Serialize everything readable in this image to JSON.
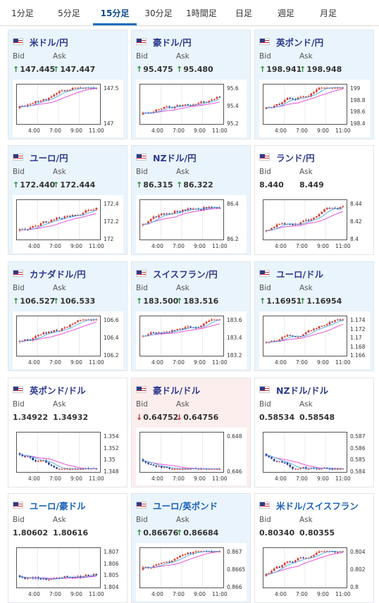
{
  "tabs": [
    {
      "label": "1分足",
      "active": false
    },
    {
      "label": "5分足",
      "active": false
    },
    {
      "label": "15分足",
      "active": true
    },
    {
      "label": "30分足",
      "active": false
    },
    {
      "label": "1時間足",
      "active": false
    },
    {
      "label": "日足",
      "active": false
    },
    {
      "label": "週足",
      "active": false
    },
    {
      "label": "月足",
      "active": false
    }
  ],
  "labels": {
    "bid": "Bid",
    "ask": "Ask"
  },
  "colors": {
    "up_candle": "#d93a2b",
    "down_candle": "#1f3a93",
    "ma_magenta": "#e23fd6",
    "ma_blue": "#3aa0e6",
    "arrow_up": "#2a8a3a",
    "arrow_down": "#c62828"
  },
  "cards": [
    {
      "name": "米ドル/円",
      "flag": "usjp",
      "bid": "147.445",
      "ask": "147.447",
      "dir": "up",
      "yticks": [
        "147.5",
        "147"
      ],
      "xticks": [
        "4:00",
        "7:00",
        "9:00",
        "11:00"
      ]
    },
    {
      "name": "豪ドル/円",
      "flag": "aujp",
      "bid": "95.475",
      "ask": "95.480",
      "dir": "up",
      "yticks": [
        "95.6",
        "95.4",
        "95.2"
      ],
      "xticks": [
        "4:00",
        "7:00",
        "9:00",
        "11:00"
      ]
    },
    {
      "name": "英ポンド/円",
      "flag": "gbjp",
      "bid": "198.941",
      "ask": "198.948",
      "dir": "up",
      "yticks": [
        "199",
        "198.8",
        "198.6",
        "198.4"
      ],
      "xticks": [
        "4:00",
        "7:00",
        "9:00",
        "11:00"
      ]
    },
    {
      "name": "ユーロ/円",
      "flag": "eujp",
      "bid": "172.440",
      "ask": "172.444",
      "dir": "up",
      "yticks": [
        "172.4",
        "172.2",
        "172"
      ],
      "xticks": [
        "4:00",
        "7:00",
        "9:00",
        "11:00"
      ]
    },
    {
      "name": "NZドル/円",
      "flag": "nzjp",
      "bid": "86.315",
      "ask": "86.322",
      "dir": "up",
      "yticks": [
        "86.4",
        "86.2"
      ],
      "xticks": [
        "4:00",
        "7:00",
        "9:00",
        "11:00"
      ]
    },
    {
      "name": "ランド/円",
      "flag": "zajp",
      "bid": "8.440",
      "ask": "8.449",
      "dir": "none",
      "yticks": [
        "8.44",
        "8.42",
        "8.4"
      ],
      "xticks": [
        "4:00",
        "7:00",
        "9:00",
        "11:00"
      ]
    },
    {
      "name": "カナダドル/円",
      "flag": "cajp",
      "bid": "106.527",
      "ask": "106.533",
      "dir": "up",
      "yticks": [
        "106.6",
        "106.4",
        "106.2"
      ],
      "xticks": [
        "4:00",
        "7:00",
        "9:00",
        "11:00"
      ]
    },
    {
      "name": "スイスフラン/円",
      "flag": "chjp",
      "bid": "183.500",
      "ask": "183.516",
      "dir": "up",
      "yticks": [
        "183.6",
        "183.4",
        "183.2"
      ],
      "xticks": [
        "4:00",
        "7:00",
        "9:00",
        "11:00"
      ]
    },
    {
      "name": "ユーロ/ドル",
      "flag": "euus",
      "bid": "1.16951",
      "ask": "1.16954",
      "dir": "up",
      "yticks": [
        "1.174",
        "1.172",
        "1.17",
        "1.168",
        "1.166"
      ],
      "xticks": [
        "4:00",
        "7:00",
        "9:00",
        "11:00"
      ]
    },
    {
      "name": "英ポンド/ドル",
      "flag": "gbus",
      "bid": "1.34922",
      "ask": "1.34932",
      "dir": "none",
      "yticks": [
        "1.354",
        "1.352",
        "1.35",
        "1.348"
      ],
      "xticks": [
        "4:00",
        "7:00",
        "9:00",
        "11:00"
      ]
    },
    {
      "name": "豪ドル/ドル",
      "flag": "auus",
      "bid": "0.64752",
      "ask": "0.64756",
      "dir": "down",
      "yticks": [
        "0.648",
        "0.646"
      ],
      "xticks": [
        "4:00",
        "7:00",
        "9:00",
        "11:00"
      ]
    },
    {
      "name": "NZドル/ドル",
      "flag": "nzus",
      "bid": "0.58534",
      "ask": "0.58548",
      "dir": "none",
      "yticks": [
        "0.587",
        "0.586",
        "0.585",
        "0.584"
      ],
      "xticks": [
        "4:00",
        "7:00",
        "9:00",
        "11:00"
      ]
    },
    {
      "name": "ユーロ/豪ドル",
      "flag": "euau",
      "bid": "1.80602",
      "ask": "1.80616",
      "dir": "none",
      "yticks": [
        "1.807",
        "1.806",
        "1.805",
        "1.804"
      ],
      "xticks": [
        "4:00",
        "7:00",
        "9:00",
        "11:00"
      ]
    },
    {
      "name": "ユーロ/英ポンド",
      "flag": "eugb",
      "bid": "0.86676",
      "ask": "0.86684",
      "dir": "up",
      "yticks": [
        "0.867",
        "0.8665",
        "0.866"
      ],
      "xticks": [
        "4:00",
        "7:00",
        "9:00",
        "11:00"
      ]
    },
    {
      "name": "米ドル/スイスフラン",
      "flag": "usch",
      "bid": "0.80340",
      "ask": "0.80355",
      "dir": "none",
      "yticks": [
        "0.804",
        "0.802",
        "0.8"
      ],
      "xticks": [
        "4:00",
        "7:00",
        "9:00",
        "11:00"
      ]
    }
  ]
}
